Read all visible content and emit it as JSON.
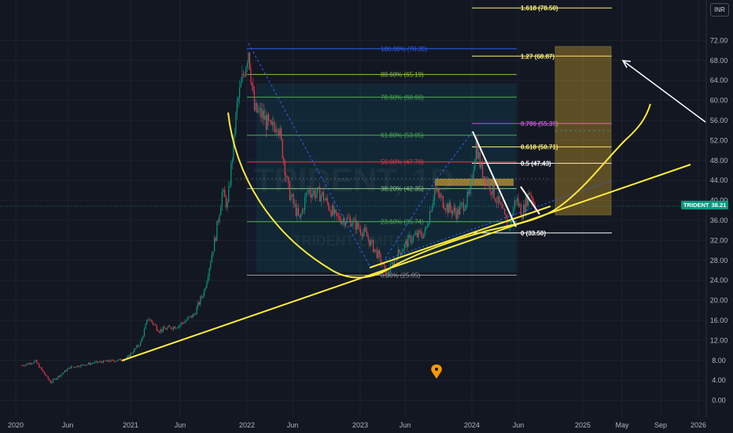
{
  "chart_data": {
    "type": "candlestick",
    "symbol": "TRIDENT",
    "interval": "1D",
    "currency": "INR",
    "last_price": "38.21",
    "watermark_symbol": "TRIDENT, 1D",
    "watermark_name": "TRIDENT LIMITED",
    "x_ticks": [
      "2020",
      "Jun",
      "2021",
      "Jun",
      "2022",
      "Jun",
      "2023",
      "Jun",
      "2024",
      "Jun",
      "2025",
      "May",
      "Sep",
      "2026"
    ],
    "y_ticks": [
      "72.00",
      "68.00",
      "64.00",
      "60.00",
      "56.00",
      "52.00",
      "48.00",
      "44.00",
      "40.00",
      "36.00",
      "32.00",
      "28.00",
      "24.00",
      "20.00",
      "16.00",
      "12.00",
      "8.00",
      "4.00",
      "0.00"
    ],
    "ylim": [
      -0.6,
      77.6
    ],
    "price_path": [
      [
        "2019-12-15",
        7.0
      ],
      [
        "2020-02-01",
        7.8
      ],
      [
        "2020-03-25",
        3.6
      ],
      [
        "2020-06-01",
        6.6
      ],
      [
        "2020-09-01",
        7.6
      ],
      [
        "2020-12-15",
        8.2
      ],
      [
        "2021-02-01",
        11.5
      ],
      [
        "2021-02-25",
        16.5
      ],
      [
        "2021-04-01",
        14.0
      ],
      [
        "2021-06-01",
        15.0
      ],
      [
        "2021-07-20",
        17.2
      ],
      [
        "2021-08-20",
        22.0
      ],
      [
        "2021-09-25",
        33.0
      ],
      [
        "2021-10-15",
        41.5
      ],
      [
        "2021-11-01",
        39.0
      ],
      [
        "2021-12-01",
        59.0
      ],
      [
        "2022-01-06",
        70.35
      ],
      [
        "2022-01-25",
        58.0
      ],
      [
        "2022-02-20",
        57.0
      ],
      [
        "2022-03-20",
        54.0
      ],
      [
        "2022-04-10",
        56.0
      ],
      [
        "2022-05-15",
        42.0
      ],
      [
        "2022-06-20",
        36.0
      ],
      [
        "2022-07-15",
        42.0
      ],
      [
        "2022-09-01",
        41.0
      ],
      [
        "2022-10-15",
        36.5
      ],
      [
        "2022-12-01",
        36.0
      ],
      [
        "2023-01-15",
        33.5
      ],
      [
        "2023-03-01",
        29.0
      ],
      [
        "2023-03-28",
        25.05
      ],
      [
        "2023-05-01",
        29.0
      ],
      [
        "2023-06-15",
        32.5
      ],
      [
        "2023-08-01",
        33.5
      ],
      [
        "2023-09-01",
        42.0
      ],
      [
        "2023-10-15",
        38.5
      ],
      [
        "2023-11-15",
        37.5
      ],
      [
        "2023-12-25",
        41.0
      ],
      [
        "2024-01-15",
        51.5
      ],
      [
        "2024-02-01",
        46.0
      ],
      [
        "2024-03-01",
        43.0
      ],
      [
        "2024-04-01",
        39.0
      ],
      [
        "2024-05-01",
        34.5
      ],
      [
        "2024-05-25",
        40.5
      ],
      [
        "2024-06-15",
        37.5
      ],
      [
        "2024-07-10",
        41.8
      ],
      [
        "2024-07-31",
        38.21
      ]
    ],
    "fib_retracement": [
      {
        "label": "100.00% (70.35)",
        "price": 70.35,
        "color": "#2962ff"
      },
      {
        "label": "88.60% (65.19)",
        "price": 65.19,
        "color": "#8bc34a"
      },
      {
        "label": "78.60% (60.66)",
        "price": 60.66,
        "color": "#4caf50"
      },
      {
        "label": "61.80% (53.05)",
        "price": 53.05,
        "color": "#4caf50"
      },
      {
        "label": "50.00% (47.70)",
        "price": 47.7,
        "color": "#f23645"
      },
      {
        "label": "38.20% (42.35)",
        "price": 42.35,
        "color": "#81c784"
      },
      {
        "label": "23.60% (35.74)",
        "price": 35.74,
        "color": "#4caf50"
      },
      {
        "label": "0.00% (25.05)",
        "price": 25.05,
        "color": "#9598a1"
      }
    ],
    "fib_extension": [
      {
        "label": "1.618 (78.50)",
        "price": 78.5,
        "color": "#fff176"
      },
      {
        "label": "1.27 (68.87)",
        "price": 68.87,
        "color": "#fff176"
      },
      {
        "label": "0.786 (55.39)",
        "price": 55.39,
        "color": "#e040fb"
      },
      {
        "label": "0.618 (50.71)",
        "price": 50.71,
        "color": "#fff176"
      },
      {
        "label": "0.5 (47.43)",
        "price": 47.43,
        "color": "#ffffff"
      },
      {
        "label": "0 (33.50)",
        "price": 33.5,
        "color": "#ffffff"
      }
    ],
    "colors": {
      "background": "#131722",
      "up": "#089981",
      "down": "#f23645",
      "trendline": "#ffeb3b",
      "target_box": "#fbc02d",
      "accent_blue": "#2962ff",
      "price_tag": "#089981"
    },
    "grid": true,
    "legend": "none"
  }
}
